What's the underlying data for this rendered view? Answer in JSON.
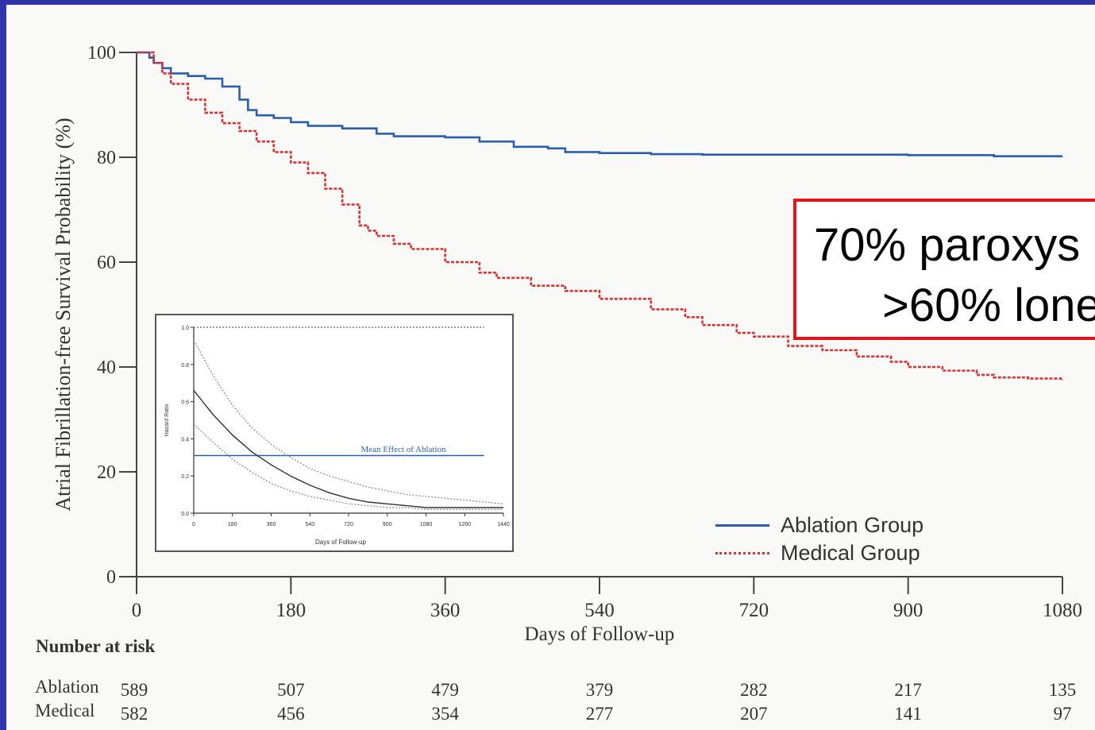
{
  "chart_data": [
    {
      "type": "line",
      "title": "",
      "xlabel": "Days of Follow-up",
      "ylabel": "Atrial Fibrillation-free Survival Probability (%)",
      "xlim": [
        0,
        1080
      ],
      "ylim": [
        0,
        100
      ],
      "xticks": [
        0,
        180,
        360,
        540,
        720,
        900,
        1080
      ],
      "yticks": [
        0,
        20,
        40,
        60,
        80,
        100
      ],
      "legend_position": "bottom-right",
      "series": [
        {
          "name": "Ablation Group",
          "color": "#2b5fae",
          "style": "solid",
          "x": [
            0,
            10,
            15,
            20,
            30,
            40,
            60,
            80,
            100,
            120,
            130,
            140,
            160,
            180,
            200,
            240,
            280,
            300,
            360,
            400,
            440,
            480,
            500,
            540,
            600,
            660,
            720,
            800,
            900,
            1000,
            1080
          ],
          "y": [
            100,
            100,
            99,
            98,
            97,
            96,
            95.5,
            95,
            93.5,
            91,
            89,
            88,
            87.5,
            86.7,
            86,
            85.5,
            84.5,
            84,
            83.8,
            83,
            82,
            81.7,
            81,
            80.8,
            80.6,
            80.5,
            80.5,
            80.5,
            80.4,
            80.2,
            80.2
          ]
        },
        {
          "name": "Medical Group",
          "color": "#e03030",
          "style": "dotted",
          "x": [
            0,
            10,
            20,
            30,
            40,
            60,
            80,
            100,
            120,
            140,
            160,
            180,
            200,
            220,
            240,
            260,
            270,
            280,
            300,
            320,
            360,
            400,
            420,
            460,
            500,
            540,
            600,
            640,
            660,
            700,
            720,
            760,
            800,
            840,
            880,
            900,
            940,
            980,
            1000,
            1040,
            1080
          ],
          "y": [
            100,
            100,
            98,
            96,
            94,
            91,
            88.5,
            86.5,
            85,
            83,
            81,
            79,
            77,
            74,
            71,
            67,
            66,
            65,
            63.5,
            62.5,
            60,
            58,
            57,
            55.5,
            54.5,
            53,
            51,
            49.5,
            48,
            46.5,
            45.8,
            44,
            43.2,
            42,
            41,
            40,
            39.3,
            38.5,
            38,
            37.8,
            37.5
          ]
        }
      ]
    },
    {
      "type": "line",
      "title": "",
      "xlabel": "Days of Follow-up",
      "ylabel": "Hazard Ratio",
      "xlim": [
        0,
        1440
      ],
      "ylim": [
        0,
        1.0
      ],
      "xticks": [
        0,
        180,
        360,
        540,
        720,
        900,
        1080,
        1260,
        1440
      ],
      "yticks": [
        0.0,
        0.2,
        0.4,
        0.6,
        0.8,
        1.0
      ],
      "annotations": [
        "Mean Effect of Ablation"
      ],
      "series": [
        {
          "style": "dotted",
          "x": [
            0,
            1350
          ],
          "y": [
            1.0,
            1.0
          ]
        },
        {
          "style": "solid",
          "x": [
            0,
            1350
          ],
          "y": [
            0.31,
            0.31
          ]
        },
        {
          "style": "solid",
          "x": [
            0,
            90,
            180,
            270,
            360,
            450,
            540,
            630,
            720,
            810,
            900,
            990,
            1080,
            1170,
            1260,
            1440
          ],
          "y": [
            0.66,
            0.53,
            0.42,
            0.33,
            0.26,
            0.2,
            0.15,
            0.11,
            0.08,
            0.06,
            0.05,
            0.04,
            0.03,
            0.03,
            0.03,
            0.03
          ]
        },
        {
          "style": "dotted",
          "x": [
            0,
            90,
            180,
            270,
            360,
            450,
            540,
            630,
            720,
            810,
            900,
            990,
            1080,
            1170,
            1260,
            1440
          ],
          "y": [
            0.93,
            0.74,
            0.58,
            0.46,
            0.37,
            0.3,
            0.24,
            0.2,
            0.17,
            0.14,
            0.12,
            0.1,
            0.09,
            0.08,
            0.07,
            0.05
          ]
        },
        {
          "style": "dotted",
          "x": [
            0,
            90,
            180,
            270,
            360,
            450,
            540,
            630,
            720,
            810,
            900,
            990,
            1080,
            1170,
            1260,
            1440
          ],
          "y": [
            0.48,
            0.38,
            0.29,
            0.22,
            0.16,
            0.12,
            0.09,
            0.07,
            0.05,
            0.04,
            0.03,
            0.03,
            0.02,
            0.02,
            0.02,
            0.02
          ]
        }
      ]
    }
  ],
  "callout": {
    "line1": "70% paroxys",
    "line2": ">60% lone",
    "border_color": "#e8141c"
  },
  "risk_table": {
    "title": "Number at risk",
    "days": [
      0,
      180,
      360,
      540,
      720,
      900,
      1080
    ],
    "rows": [
      {
        "label": "Ablation",
        "values": [
          "589",
          "507",
          "479",
          "379",
          "282",
          "217",
          "135"
        ]
      },
      {
        "label": "Medical",
        "values": [
          "582",
          "456",
          "354",
          "277",
          "207",
          "141",
          "97"
        ]
      }
    ]
  }
}
